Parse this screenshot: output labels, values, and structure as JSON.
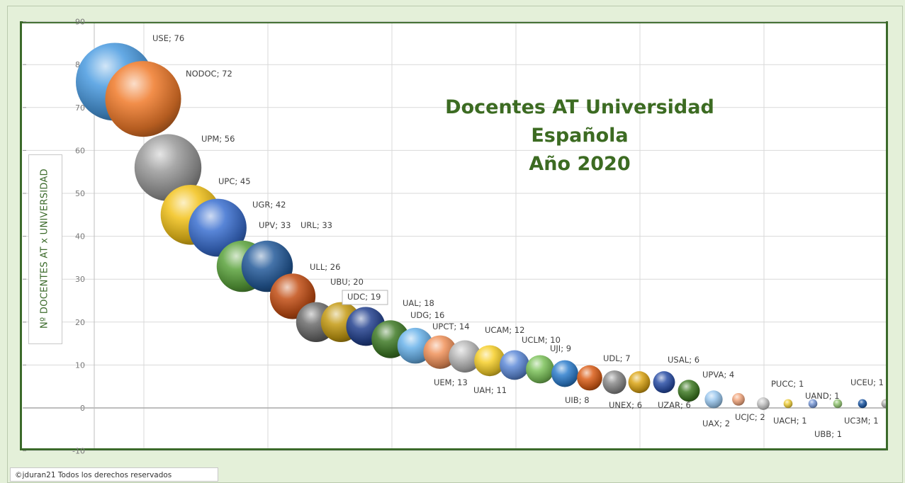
{
  "chart_data": {
    "type": "bubble",
    "title": "Docentes AT Universidad Española",
    "subtitle": "Año 2020",
    "ylabel": "Nº DOCENTES AT x UNIVERSIDAD",
    "ylim": [
      -10,
      90
    ],
    "yticks": [
      "-10",
      "0",
      "10",
      "20",
      "30",
      "40",
      "50",
      "60",
      "70",
      "80",
      "90"
    ],
    "grid": true,
    "points": [
      {
        "label": "USE; 76",
        "name": "USE",
        "y": 76,
        "color": "#4a9be0"
      },
      {
        "label": "NODOC; 72",
        "name": "NODOC",
        "y": 72,
        "color": "#f07a2a"
      },
      {
        "label": "UPM; 56",
        "name": "UPM",
        "y": 56,
        "color": "#9a9a9a"
      },
      {
        "label": "UPC; 45",
        "name": "UPC",
        "y": 45,
        "color": "#f2c21a"
      },
      {
        "label": "UGR; 42",
        "name": "UGR",
        "y": 42,
        "color": "#3a6fd0"
      },
      {
        "label": "UPV; 33",
        "name": "UPV",
        "y": 33,
        "color": "#5aa23c"
      },
      {
        "label": "URL; 33",
        "name": "URL",
        "y": 33,
        "color": "#245a9a"
      },
      {
        "label": "ULL; 26",
        "name": "ULL",
        "y": 26,
        "color": "#c24d14"
      },
      {
        "label": "",
        "name": "—",
        "y": 20,
        "color": "#6c6c6c"
      },
      {
        "label": "UBU; 20",
        "name": "UBU",
        "y": 20,
        "color": "#c49a12"
      },
      {
        "label": "UDC; 19",
        "name": "UDC",
        "y": 19,
        "color": "#24428f"
      },
      {
        "label": "UAL; 18",
        "name": "UAL",
        "y": 16,
        "color": "#3f7a26"
      },
      {
        "label": "UDG; 16",
        "name": "UDG",
        "y": 14.5,
        "color": "#6ab2ea"
      },
      {
        "label": "UPCT; 14",
        "name": "UPCT",
        "y": 13,
        "color": "#f0915a"
      },
      {
        "label": "UEM; 13",
        "name": "UEM",
        "y": 12,
        "color": "#b7b7b7"
      },
      {
        "label": "UCAM; 12",
        "name": "UCAM",
        "y": 11,
        "color": "#f5cf2a"
      },
      {
        "label": "UAH; 11",
        "name": "UAH",
        "y": 10,
        "color": "#5f8ad8"
      },
      {
        "label": "UCLM; 10",
        "name": "UCLM",
        "y": 9,
        "color": "#7cc25a"
      },
      {
        "label": "UJI; 9",
        "name": "UJI",
        "y": 8,
        "color": "#2f7fce"
      },
      {
        "label": "UIB; 8",
        "name": "UIB",
        "y": 7,
        "color": "#da5e18"
      },
      {
        "label": "UDL; 7",
        "name": "UDL",
        "y": 6,
        "color": "#8a8a8a"
      },
      {
        "label": "UNEX; 6",
        "name": "UNEX",
        "y": 6,
        "color": "#dca516"
      },
      {
        "label": "USAL; 6",
        "name": "USAL",
        "y": 6,
        "color": "#2a4ea6"
      },
      {
        "label": "UZAR; 6",
        "name": "UZAR",
        "y": 4,
        "color": "#3f7a24"
      },
      {
        "label": "UPVA; 4",
        "name": "UPVA",
        "y": 2,
        "color": "#9bc8ef"
      },
      {
        "label": "UAX; 2",
        "name": "UAX",
        "y": 2,
        "color": "#f2a880"
      },
      {
        "label": "UCJC; 2",
        "name": "UCJC",
        "y": 1,
        "color": "#c7c7c7"
      },
      {
        "label": "PUCC; 1",
        "name": "PUCC",
        "y": 1,
        "color": "#f0d040"
      },
      {
        "label": "UACH; 1",
        "name": "UACH",
        "y": 1,
        "color": "#7a9ad8"
      },
      {
        "label": "UAND; 1",
        "name": "UAND",
        "y": 1,
        "color": "#96c878"
      },
      {
        "label": "UBB; 1",
        "name": "UBB",
        "y": 1,
        "color": "#1f5aa6"
      },
      {
        "label": "UC3M; 1",
        "name": "UC3M",
        "y": 1,
        "color": "#d06818"
      },
      {
        "label": "UCEU; 1",
        "name": "UCEU",
        "y": 1,
        "color": "#b0b0b0"
      }
    ],
    "sizes": [
      76,
      72,
      56,
      45,
      42,
      33,
      33,
      26,
      20,
      20,
      19,
      18,
      16,
      14,
      13,
      12,
      11,
      10,
      9,
      8,
      7,
      6,
      6,
      6,
      4,
      2,
      2,
      1,
      1,
      1,
      1,
      1,
      1
    ]
  },
  "copyright": "©jduran21 Todos los derechos reservados"
}
